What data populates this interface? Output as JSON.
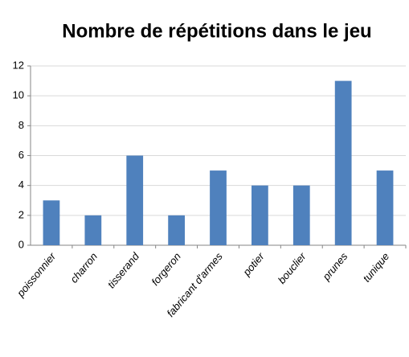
{
  "chart_data": {
    "type": "bar",
    "title": "Nombre de répétitions dans le jeu",
    "categories": [
      "poissonnier",
      "charron",
      "tisserand",
      "forgeron",
      "fabricant d'armes",
      "potier",
      "bouclier",
      "prunes",
      "tunique"
    ],
    "values": [
      3,
      2,
      6,
      2,
      5,
      4,
      4,
      11,
      5
    ],
    "color": "#4f81bd",
    "ylim": [
      0,
      12
    ],
    "yticks": [
      0,
      2,
      4,
      6,
      8,
      10,
      12
    ],
    "grid": true
  }
}
